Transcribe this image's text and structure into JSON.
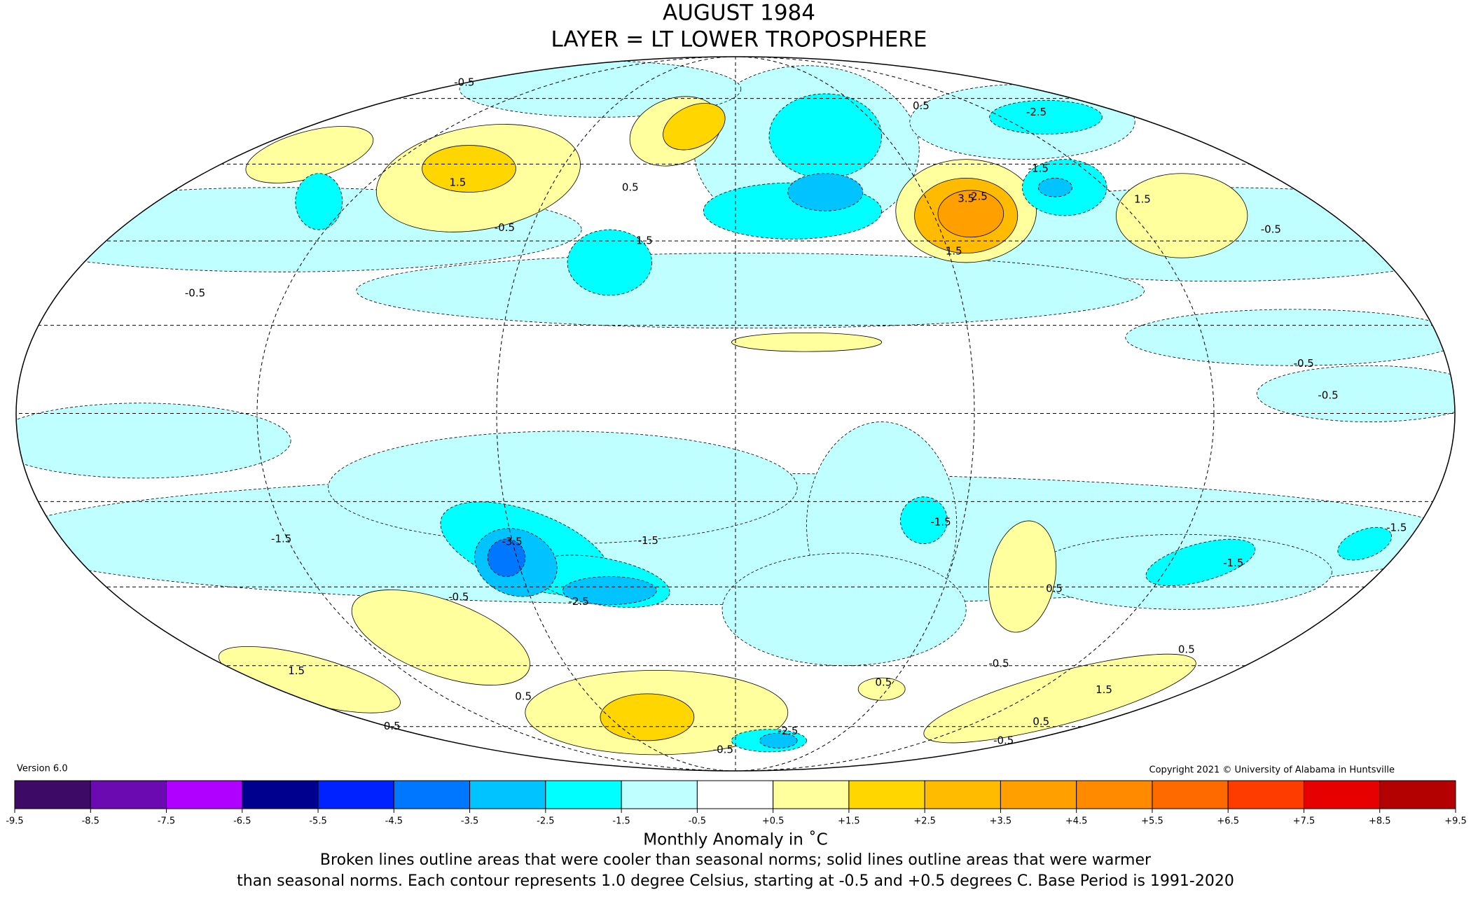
{
  "header": {
    "title": "AUGUST 1984",
    "subtitle": "LAYER = LT LOWER TROPOSPHERE"
  },
  "map": {
    "contour_labels": [
      "-0.5",
      "-2.5",
      "-1.5",
      "0.5",
      "0.5",
      "-0.5",
      "1.5",
      "1.5",
      "-0.5",
      "2.5",
      "3.5",
      "1.5",
      "-0.5",
      "-0.5",
      "-0.5",
      "-1.5",
      "-3.5",
      "-1.5",
      "-2.5",
      "-0.5",
      "-1.5",
      "0.5",
      "-0.5",
      "0.5",
      "-1.5",
      "1.5",
      "0.5",
      "0.5",
      "-2.5",
      "-0.5",
      "0.5",
      "0.5",
      "1.5",
      "-0.5",
      "-1.5",
      "1.5"
    ]
  },
  "version": "Version 6.0",
  "copyright": "Copyright 2021 © University of Alabama in Huntsville",
  "legend": {
    "title": "Monthly Anomaly in ˚C",
    "ticks": [
      -9.5,
      -8.5,
      -7.5,
      -6.5,
      -5.5,
      -4.5,
      -3.5,
      -2.5,
      -1.5,
      -0.5,
      {
        "value": 0.5,
        "label": "+0.5"
      },
      {
        "value": 1.5,
        "label": "+1.5"
      },
      {
        "value": 2.5,
        "label": "+2.5"
      },
      {
        "value": 3.5,
        "label": "+3.5"
      },
      {
        "value": 4.5,
        "label": "+4.5"
      },
      {
        "value": 5.5,
        "label": "+5.5"
      },
      {
        "value": 6.5,
        "label": "+6.5"
      },
      {
        "value": 7.5,
        "label": "+7.5"
      },
      {
        "value": 8.5,
        "label": "+8.5"
      },
      {
        "value": 9.5,
        "label": "+9.5"
      }
    ],
    "colors": [
      "#3d0a66",
      "#6a0ab0",
      "#b000ff",
      "#00008f",
      "#0022ff",
      "#0077ff",
      "#00c3ff",
      "#00ffff",
      "#c0ffff",
      "#ffffff",
      "#ffff9e",
      "#ffd600",
      "#ffbb00",
      "#ffa000",
      "#ff8a00",
      "#ff6a00",
      "#ff3c00",
      "#e60000",
      "#b30000"
    ]
  },
  "caption": [
    "Broken lines outline areas that were cooler than seasonal norms; solid lines outline areas that were warmer",
    "than seasonal norms. Each contour represents 1.0 degree Celsius, starting at -0.5 and +0.5 degrees C. Base Period is 1991-2020"
  ]
}
